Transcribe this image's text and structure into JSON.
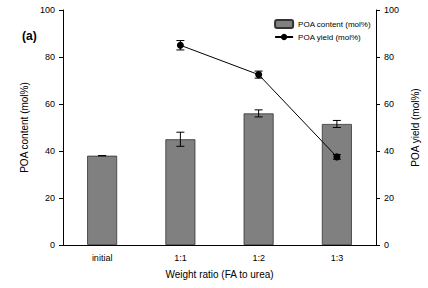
{
  "chart_data": {
    "type": "bar",
    "annotations": [
      "(a)"
    ],
    "x_label": "Weight ratio (FA to urea)",
    "y_label": "POA content (mol%)",
    "y2_label": "POA yield (mol%)",
    "categories": [
      "initial",
      "1:1",
      "1:2",
      "1:3"
    ],
    "series": [
      {
        "name": "POA content (mol%)",
        "type": "bar",
        "color": "#808080",
        "values": [
          38,
          45,
          56,
          51.5
        ],
        "errors": [
          0,
          3,
          1.5,
          1.5
        ]
      },
      {
        "name": "POA yield (mol%)",
        "type": "line",
        "axis": "y2",
        "color": "#000000",
        "marker": "circle",
        "line_style": "solid",
        "values": [
          null,
          85,
          72.5,
          37.5
        ],
        "errors": [
          null,
          2,
          1.5,
          1
        ]
      }
    ],
    "ylim": [
      0,
      100
    ],
    "yticks": [
      0,
      20,
      40,
      60,
      80,
      100
    ],
    "y2lim": [
      0,
      100
    ],
    "y2ticks": [
      0,
      20,
      40,
      60,
      80,
      100
    ],
    "legend": "upper right",
    "grid": false
  }
}
